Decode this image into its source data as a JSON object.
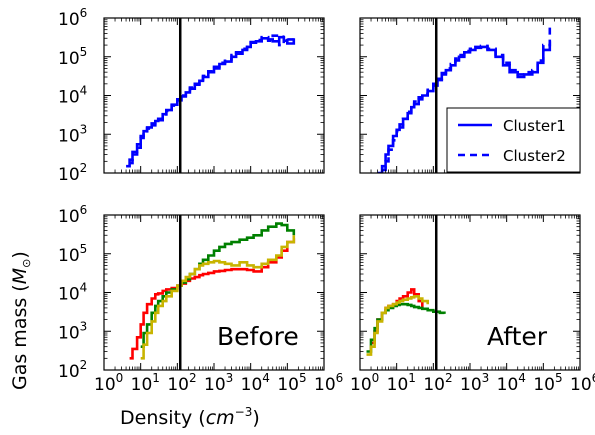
{
  "figure": {
    "xlabel_text": "Density (",
    "xlabel_unit": "cm",
    "xlabel_exp": "−3",
    "xlabel_close": ")",
    "ylabel_text": "Gas mass (",
    "ylabel_unit": "M",
    "ylabel_sub": "⊙",
    "ylabel_close": ")"
  },
  "chart_data": [
    {
      "type": "line",
      "position": "top-left",
      "xscale": "log",
      "yscale": "log",
      "xlim": [
        1,
        1000000
      ],
      "ylim": [
        100,
        1000000
      ],
      "vline_x": 120,
      "label": "",
      "series": [
        {
          "color": "#0000ff",
          "style": "solid",
          "x": [
            4,
            5,
            6,
            8,
            10,
            12,
            15,
            20,
            25,
            30,
            40,
            50,
            70,
            100,
            130,
            170,
            220,
            300,
            400,
            500,
            700,
            1000,
            1400,
            2000,
            3000,
            4000,
            6000,
            8000,
            10000,
            14000,
            20000,
            30000,
            40000,
            60000,
            80000,
            100000,
            150000
          ],
          "y": [
            150,
            220,
            350,
            550,
            900,
            1200,
            1500,
            1900,
            2200,
            2500,
            3300,
            4200,
            5800,
            7500,
            9500,
            12000,
            15000,
            19000,
            24000,
            30000,
            40000,
            50000,
            65000,
            75000,
            100000,
            120000,
            150000,
            180000,
            230000,
            250000,
            300000,
            280000,
            250000,
            320000,
            260000,
            220000,
            300000
          ]
        },
        {
          "color": "#0000ff",
          "style": "dashed",
          "x": [
            5,
            6,
            8,
            10,
            12,
            15,
            20,
            25,
            30,
            40,
            50,
            70,
            100,
            130,
            170,
            220,
            300,
            400,
            500,
            700,
            1000,
            1400,
            2000,
            3000,
            4000,
            6000,
            8000,
            10000,
            14000,
            20000,
            30000,
            40000,
            60000,
            80000,
            100000,
            150000
          ],
          "y": [
            180,
            300,
            450,
            800,
            1000,
            1400,
            1700,
            2000,
            2300,
            3000,
            4000,
            5500,
            8000,
            10000,
            12500,
            16000,
            20000,
            26000,
            32000,
            42000,
            55000,
            70000,
            85000,
            110000,
            130000,
            160000,
            200000,
            240000,
            270000,
            320000,
            260000,
            350000,
            200000,
            330000,
            280000,
            330000
          ]
        }
      ]
    },
    {
      "type": "line",
      "position": "top-right",
      "xscale": "log",
      "yscale": "log",
      "xlim": [
        1,
        1000000
      ],
      "ylim": [
        100,
        1000000
      ],
      "vline_x": 120,
      "label": "",
      "legend": {
        "placement": "lower-right",
        "entries": [
          {
            "name": "Cluster1",
            "style": "solid",
            "color": "#0000ff"
          },
          {
            "name": "Cluster2",
            "style": "dashed",
            "color": "#0000ff"
          }
        ]
      },
      "series": [
        {
          "color": "#0000ff",
          "style": "solid",
          "x": [
            3,
            4,
            5,
            6,
            8,
            10,
            12,
            15,
            20,
            25,
            30,
            40,
            50,
            70,
            100,
            130,
            170,
            220,
            300,
            400,
            500,
            700,
            1000,
            1400,
            2000,
            3000,
            5000,
            8000,
            12000,
            20000,
            30000,
            50000,
            70000,
            100000,
            150000
          ],
          "y": [
            100,
            150,
            300,
            500,
            900,
            1300,
            1800,
            2500,
            3500,
            5000,
            6000,
            8000,
            10000,
            13000,
            18000,
            25000,
            35000,
            45000,
            60000,
            80000,
            100000,
            130000,
            150000,
            170000,
            180000,
            150000,
            100000,
            60000,
            40000,
            30000,
            35000,
            40000,
            70000,
            150000,
            250000
          ]
        },
        {
          "color": "#0000ff",
          "style": "dashed",
          "x": [
            4,
            5,
            6,
            8,
            10,
            12,
            15,
            20,
            25,
            30,
            40,
            50,
            70,
            100,
            130,
            170,
            220,
            300,
            400,
            500,
            700,
            1000,
            1400,
            2000,
            3000,
            5000,
            8000,
            12000,
            20000,
            30000,
            50000,
            70000,
            100000,
            150000
          ],
          "y": [
            120,
            200,
            400,
            700,
            1200,
            1500,
            2500,
            3800,
            5500,
            7000,
            9000,
            11000,
            14000,
            20000,
            27000,
            38000,
            50000,
            65000,
            90000,
            110000,
            140000,
            160000,
            180000,
            190000,
            160000,
            110000,
            70000,
            45000,
            35000,
            40000,
            45000,
            80000,
            200000,
            700000
          ]
        }
      ]
    },
    {
      "type": "line",
      "position": "bottom-left",
      "xscale": "log",
      "yscale": "log",
      "xlim": [
        1,
        1000000
      ],
      "ylim": [
        100,
        1000000
      ],
      "vline_x": 120,
      "label": "Before",
      "series": [
        {
          "color": "#ff0000",
          "style": "solid",
          "x": [
            5,
            6,
            8,
            10,
            12,
            15,
            20,
            25,
            30,
            40,
            50,
            70,
            100,
            130,
            170,
            220,
            300,
            400,
            500,
            700,
            1000,
            1400,
            2000,
            3000,
            5000,
            8000,
            12000,
            20000,
            30000,
            50000,
            70000,
            100000,
            150000
          ],
          "y": [
            200,
            350,
            700,
            1500,
            3000,
            5000,
            7000,
            9000,
            9500,
            11000,
            12000,
            13000,
            15000,
            17000,
            20000,
            23000,
            25000,
            28000,
            30000,
            32000,
            35000,
            36000,
            38000,
            40000,
            40000,
            38000,
            35000,
            45000,
            60000,
            80000,
            120000,
            200000,
            250000
          ]
        },
        {
          "color": "#008000",
          "style": "solid",
          "x": [
            10,
            12,
            15,
            20,
            25,
            30,
            40,
            50,
            70,
            100,
            130,
            170,
            220,
            300,
            400,
            500,
            700,
            1000,
            1400,
            2000,
            3000,
            5000,
            8000,
            12000,
            20000,
            30000,
            50000,
            70000,
            100000,
            150000
          ],
          "y": [
            400,
            900,
            1500,
            3000,
            4500,
            6000,
            8000,
            10000,
            12000,
            15000,
            18000,
            22000,
            30000,
            40000,
            55000,
            70000,
            90000,
            120000,
            150000,
            180000,
            200000,
            230000,
            260000,
            300000,
            400000,
            500000,
            600000,
            550000,
            400000,
            300000
          ]
        },
        {
          "color": "#c8b400",
          "style": "solid",
          "x": [
            10,
            12,
            15,
            20,
            25,
            30,
            40,
            50,
            70,
            100,
            130,
            170,
            220,
            300,
            400,
            500,
            700,
            1000,
            1400,
            2000,
            3000,
            5000,
            8000,
            12000,
            20000,
            30000,
            50000,
            70000,
            100000,
            150000
          ],
          "y": [
            200,
            450,
            900,
            1800,
            3000,
            4500,
            6000,
            8000,
            11000,
            15000,
            20000,
            25000,
            30000,
            40000,
            50000,
            55000,
            60000,
            65000,
            60000,
            55000,
            50000,
            60000,
            50000,
            45000,
            55000,
            70000,
            90000,
            150000,
            200000,
            300000
          ]
        }
      ]
    },
    {
      "type": "line",
      "position": "bottom-right",
      "xscale": "log",
      "yscale": "log",
      "xlim": [
        1,
        1000000
      ],
      "ylim": [
        100,
        1000000
      ],
      "vline_x": 120,
      "label": "After",
      "series": [
        {
          "color": "#ff0000",
          "style": "solid",
          "x": [
            2,
            2.5,
            3,
            4,
            5,
            6,
            8,
            10,
            12,
            15,
            20,
            25,
            30,
            40,
            50
          ],
          "y": [
            500,
            1000,
            2000,
            3000,
            4000,
            4500,
            5000,
            6000,
            7000,
            8000,
            10000,
            12000,
            9000,
            6000,
            4000
          ]
        },
        {
          "color": "#008000",
          "style": "solid",
          "x": [
            1.5,
            2,
            2.5,
            3,
            4,
            5,
            6,
            8,
            10,
            12,
            15,
            20,
            25,
            30,
            40,
            50,
            70,
            100,
            150,
            200
          ],
          "y": [
            300,
            600,
            1200,
            2000,
            3000,
            3500,
            4000,
            4500,
            4800,
            5000,
            5000,
            4800,
            4500,
            4200,
            4000,
            3800,
            3500,
            3200,
            3000,
            2800
          ]
        },
        {
          "color": "#c8b400",
          "style": "solid",
          "x": [
            1.5,
            2,
            2.5,
            3,
            4,
            5,
            6,
            8,
            10,
            12,
            15,
            20,
            25,
            30,
            40,
            50,
            70
          ],
          "y": [
            250,
            400,
            900,
            1800,
            3000,
            4000,
            4500,
            5000,
            5500,
            6000,
            6500,
            7000,
            7500,
            8000,
            7000,
            6000,
            5000
          ]
        }
      ]
    }
  ]
}
